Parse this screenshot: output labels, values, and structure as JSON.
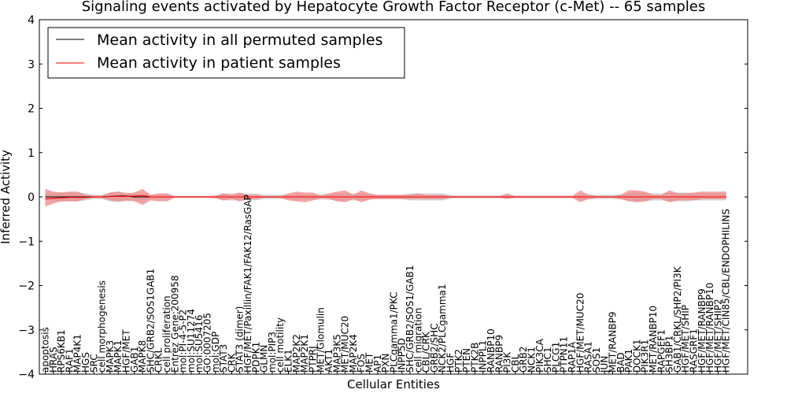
{
  "chart_data": {
    "type": "line",
    "title": "Signaling events activated by Hepatocyte Growth Factor Receptor (c-Met) -- 65 samples",
    "xlabel": "Cellular Entities",
    "ylabel": "Inferred Activity",
    "ylim": [
      -4,
      4
    ],
    "yticks": [
      "4",
      "3",
      "2",
      "1",
      "0",
      "−1",
      "−2",
      "−3",
      "−4"
    ],
    "legend_position": "top-left",
    "categories": [
      "apoptosis",
      "HRAS",
      "RPS6KB1",
      "RAF1",
      "MAP4K1",
      "HGS",
      "SRC",
      "cell morphogenesis",
      "MAPK3",
      "MAPK1",
      "HGF/MET",
      "GAB1",
      "MAPK8",
      "SHC/GRB2/SOS1GAB1",
      "CRKL",
      "cell proliferation",
      "Entrez Gene:200958",
      "mol:PI-4-5-P2",
      "mol:SU11274",
      "mol:SU5416",
      "GO:0007205",
      "mol:GDP",
      "STAT3",
      "CRK",
      "STAT3 (dimer)",
      "HGF/MET/Paxillin/FAK1/FAK12/RasGAP",
      "PDPK1",
      "GLMN",
      "mol:PIP3",
      "cell motility",
      "ELK1",
      "MAP2K2",
      "MAP2K1",
      "PTPRJ",
      "MET/Glomulin",
      "AKT1",
      "MAP3K5",
      "MET/MUC20",
      "MAP2K4",
      "FOS",
      "MET",
      "AP1",
      "PXN",
      "PLCgamma1/PKC",
      "INPP5D",
      "SHC/GRB2/SOS1/GAB1",
      "cell migration",
      "CBL/CRK",
      "GRB2/SHC",
      "NCK2/PLCgamma1",
      "HGF",
      "PTK2",
      "PTEN",
      "PTK2B",
      "INPPL1",
      "RANBP10",
      "RANBP9",
      "PI3K",
      "CBL",
      "GRB2",
      "NCK1",
      "PIK3CA",
      "SHC1",
      "PLCG1",
      "PTPN11",
      "RAP1A",
      "HGF/MET/MUC20",
      "RASA1",
      "SOS1",
      "JUN",
      "MET/RANBP9",
      "BAD",
      "PAK1",
      "DOCK1",
      "PIK3R1",
      "MET/RANBP10",
      "RAPGEF1",
      "SH3BP1",
      "GAB1/CRKL/SHP2/PI3K",
      "HGF/MET/SHIP",
      "RASGRF1",
      "HGF/MET/RANBP9",
      "HGF/MET/RANBP10",
      "HGF/MET/SHIP2",
      "HGF/MET/CIN85/CBL/ENDOPHILINS"
    ],
    "series": [
      {
        "name": "Mean activity in all permuted samples",
        "color": "#000000",
        "values": [
          0.0,
          0.0,
          0.0,
          0.0,
          0.0,
          0.0,
          0.0,
          0.0,
          0.01,
          0.02,
          0.02,
          0.0,
          0.0,
          0.0,
          0.0,
          0.0,
          0.0,
          0.0,
          0.0,
          0.0,
          0.0,
          0.0,
          0.0,
          0.0,
          0.0,
          0.0,
          0.0,
          0.0,
          0.0,
          0.0,
          0.0,
          0.0,
          0.0,
          0.0,
          0.0,
          0.0,
          0.0,
          0.0,
          0.0,
          0.0,
          0.0,
          0.0,
          0.0,
          0.0,
          0.0,
          0.0,
          0.0,
          0.0,
          0.0,
          0.0,
          0.0,
          0.0,
          0.0,
          0.0,
          0.0,
          0.0,
          0.0,
          0.0,
          0.0,
          0.0,
          0.0,
          0.0,
          0.0,
          0.0,
          0.0,
          0.0,
          0.0,
          0.0,
          0.0,
          0.0,
          0.0,
          0.0,
          0.0,
          0.0,
          0.0,
          0.0,
          0.0,
          0.0,
          0.0,
          0.0,
          0.0,
          0.0,
          0.0,
          0.0,
          0.0
        ]
      },
      {
        "name": "Mean activity in patient samples",
        "color": "#ff0000",
        "values": [
          -0.05,
          -0.03,
          -0.02,
          -0.01,
          -0.01,
          -0.01,
          0.0,
          0.0,
          0.01,
          0.01,
          0.01,
          0.02,
          0.03,
          0.0,
          0.0,
          0.0,
          0.0,
          0.0,
          0.0,
          0.0,
          0.0,
          0.0,
          0.0,
          0.0,
          0.0,
          0.0,
          0.0,
          0.0,
          0.0,
          0.0,
          0.0,
          0.0,
          0.0,
          0.0,
          0.0,
          0.0,
          0.0,
          0.0,
          0.0,
          0.0,
          0.0,
          0.0,
          0.0,
          0.0,
          0.0,
          0.0,
          0.0,
          0.0,
          0.0,
          0.0,
          0.0,
          0.0,
          0.0,
          0.0,
          0.0,
          0.0,
          0.0,
          0.0,
          0.0,
          0.0,
          0.0,
          0.0,
          0.0,
          0.0,
          0.0,
          0.0,
          0.0,
          0.0,
          0.0,
          0.0,
          0.0,
          0.0,
          0.0,
          0.0,
          0.0,
          0.0,
          0.0,
          0.0,
          0.0,
          0.0,
          0.0,
          0.0,
          0.0,
          0.0,
          0.0
        ]
      }
    ],
    "bands": [
      {
        "name": "permuted spread",
        "color": "#c8c8c8",
        "lower": [
          -0.08,
          -0.08,
          -0.1,
          -0.1,
          -0.1,
          -0.08,
          -0.05,
          -0.05,
          -0.1,
          -0.12,
          -0.1,
          -0.08,
          -0.08,
          -0.05,
          -0.05,
          -0.05,
          -0.02,
          -0.02,
          -0.02,
          -0.02,
          -0.02,
          -0.03,
          -0.08,
          -0.08,
          -0.08,
          -0.08,
          -0.08,
          -0.05,
          -0.05,
          -0.05,
          -0.05,
          -0.06,
          -0.06,
          -0.06,
          -0.06,
          -0.06,
          -0.08,
          -0.08,
          -0.08,
          -0.08,
          -0.06,
          -0.05,
          -0.05,
          -0.05,
          -0.05,
          -0.08,
          -0.08,
          -0.08,
          -0.08,
          -0.08,
          -0.05,
          -0.03,
          -0.03,
          -0.03,
          -0.03,
          -0.03,
          -0.03,
          -0.03,
          -0.03,
          -0.03,
          -0.03,
          -0.03,
          -0.03,
          -0.03,
          -0.03,
          -0.03,
          -0.06,
          -0.06,
          -0.05,
          -0.05,
          -0.05,
          -0.06,
          -0.08,
          -0.1,
          -0.1,
          -0.08,
          -0.08,
          -0.1,
          -0.1,
          -0.1,
          -0.08,
          -0.08,
          -0.08,
          -0.08,
          -0.08
        ],
        "upper": [
          0.08,
          0.08,
          0.1,
          0.1,
          0.1,
          0.08,
          0.05,
          0.05,
          0.1,
          0.12,
          0.1,
          0.08,
          0.08,
          0.05,
          0.05,
          0.05,
          0.02,
          0.02,
          0.02,
          0.02,
          0.02,
          0.03,
          0.08,
          0.08,
          0.08,
          0.08,
          0.08,
          0.05,
          0.05,
          0.05,
          0.05,
          0.06,
          0.06,
          0.06,
          0.06,
          0.06,
          0.08,
          0.08,
          0.08,
          0.08,
          0.06,
          0.05,
          0.05,
          0.05,
          0.05,
          0.08,
          0.08,
          0.08,
          0.08,
          0.08,
          0.05,
          0.03,
          0.03,
          0.03,
          0.03,
          0.03,
          0.03,
          0.03,
          0.03,
          0.03,
          0.03,
          0.03,
          0.03,
          0.03,
          0.03,
          0.03,
          0.06,
          0.06,
          0.05,
          0.05,
          0.05,
          0.06,
          0.08,
          0.1,
          0.1,
          0.08,
          0.08,
          0.1,
          0.1,
          0.1,
          0.08,
          0.08,
          0.08,
          0.08,
          0.08
        ]
      },
      {
        "name": "patient spread",
        "color": "#f08080",
        "lower": [
          -0.22,
          -0.15,
          -0.1,
          -0.1,
          -0.1,
          -0.05,
          -0.02,
          -0.03,
          -0.08,
          -0.1,
          -0.08,
          -0.1,
          -0.18,
          -0.08,
          -0.1,
          -0.1,
          -0.02,
          -0.02,
          -0.02,
          -0.02,
          -0.02,
          -0.03,
          -0.08,
          -0.05,
          -0.1,
          -0.05,
          -0.05,
          -0.02,
          -0.02,
          -0.02,
          -0.08,
          -0.1,
          -0.12,
          -0.08,
          -0.03,
          -0.05,
          -0.1,
          -0.12,
          -0.05,
          -0.12,
          -0.06,
          -0.05,
          -0.05,
          -0.05,
          -0.05,
          -0.05,
          -0.05,
          -0.05,
          -0.05,
          -0.05,
          -0.02,
          -0.02,
          -0.02,
          -0.02,
          -0.02,
          -0.02,
          -0.02,
          -0.05,
          -0.02,
          -0.02,
          -0.02,
          -0.02,
          -0.02,
          -0.02,
          -0.02,
          -0.02,
          -0.12,
          -0.05,
          -0.02,
          -0.02,
          -0.02,
          -0.05,
          -0.1,
          -0.12,
          -0.1,
          -0.05,
          -0.05,
          -0.12,
          -0.08,
          -0.08,
          -0.08,
          -0.05,
          -0.05,
          -0.05,
          -0.05
        ],
        "upper": [
          0.18,
          0.12,
          0.1,
          0.12,
          0.12,
          0.05,
          0.03,
          0.03,
          0.1,
          0.12,
          0.08,
          0.1,
          0.18,
          0.05,
          0.08,
          0.08,
          0.02,
          0.02,
          0.02,
          0.02,
          0.02,
          0.03,
          0.08,
          0.05,
          0.1,
          0.05,
          0.05,
          0.02,
          0.02,
          0.02,
          0.08,
          0.12,
          0.1,
          0.1,
          0.03,
          0.08,
          0.12,
          0.15,
          0.05,
          0.15,
          0.08,
          0.05,
          0.05,
          0.05,
          0.05,
          0.05,
          0.08,
          0.05,
          0.05,
          0.05,
          0.02,
          0.02,
          0.02,
          0.02,
          0.02,
          0.02,
          0.02,
          0.08,
          0.02,
          0.02,
          0.02,
          0.02,
          0.02,
          0.02,
          0.02,
          0.02,
          0.15,
          0.05,
          0.02,
          0.02,
          0.02,
          0.05,
          0.15,
          0.15,
          0.12,
          0.05,
          0.05,
          0.15,
          0.08,
          0.08,
          0.1,
          0.12,
          0.12,
          0.12,
          0.12
        ]
      }
    ]
  }
}
